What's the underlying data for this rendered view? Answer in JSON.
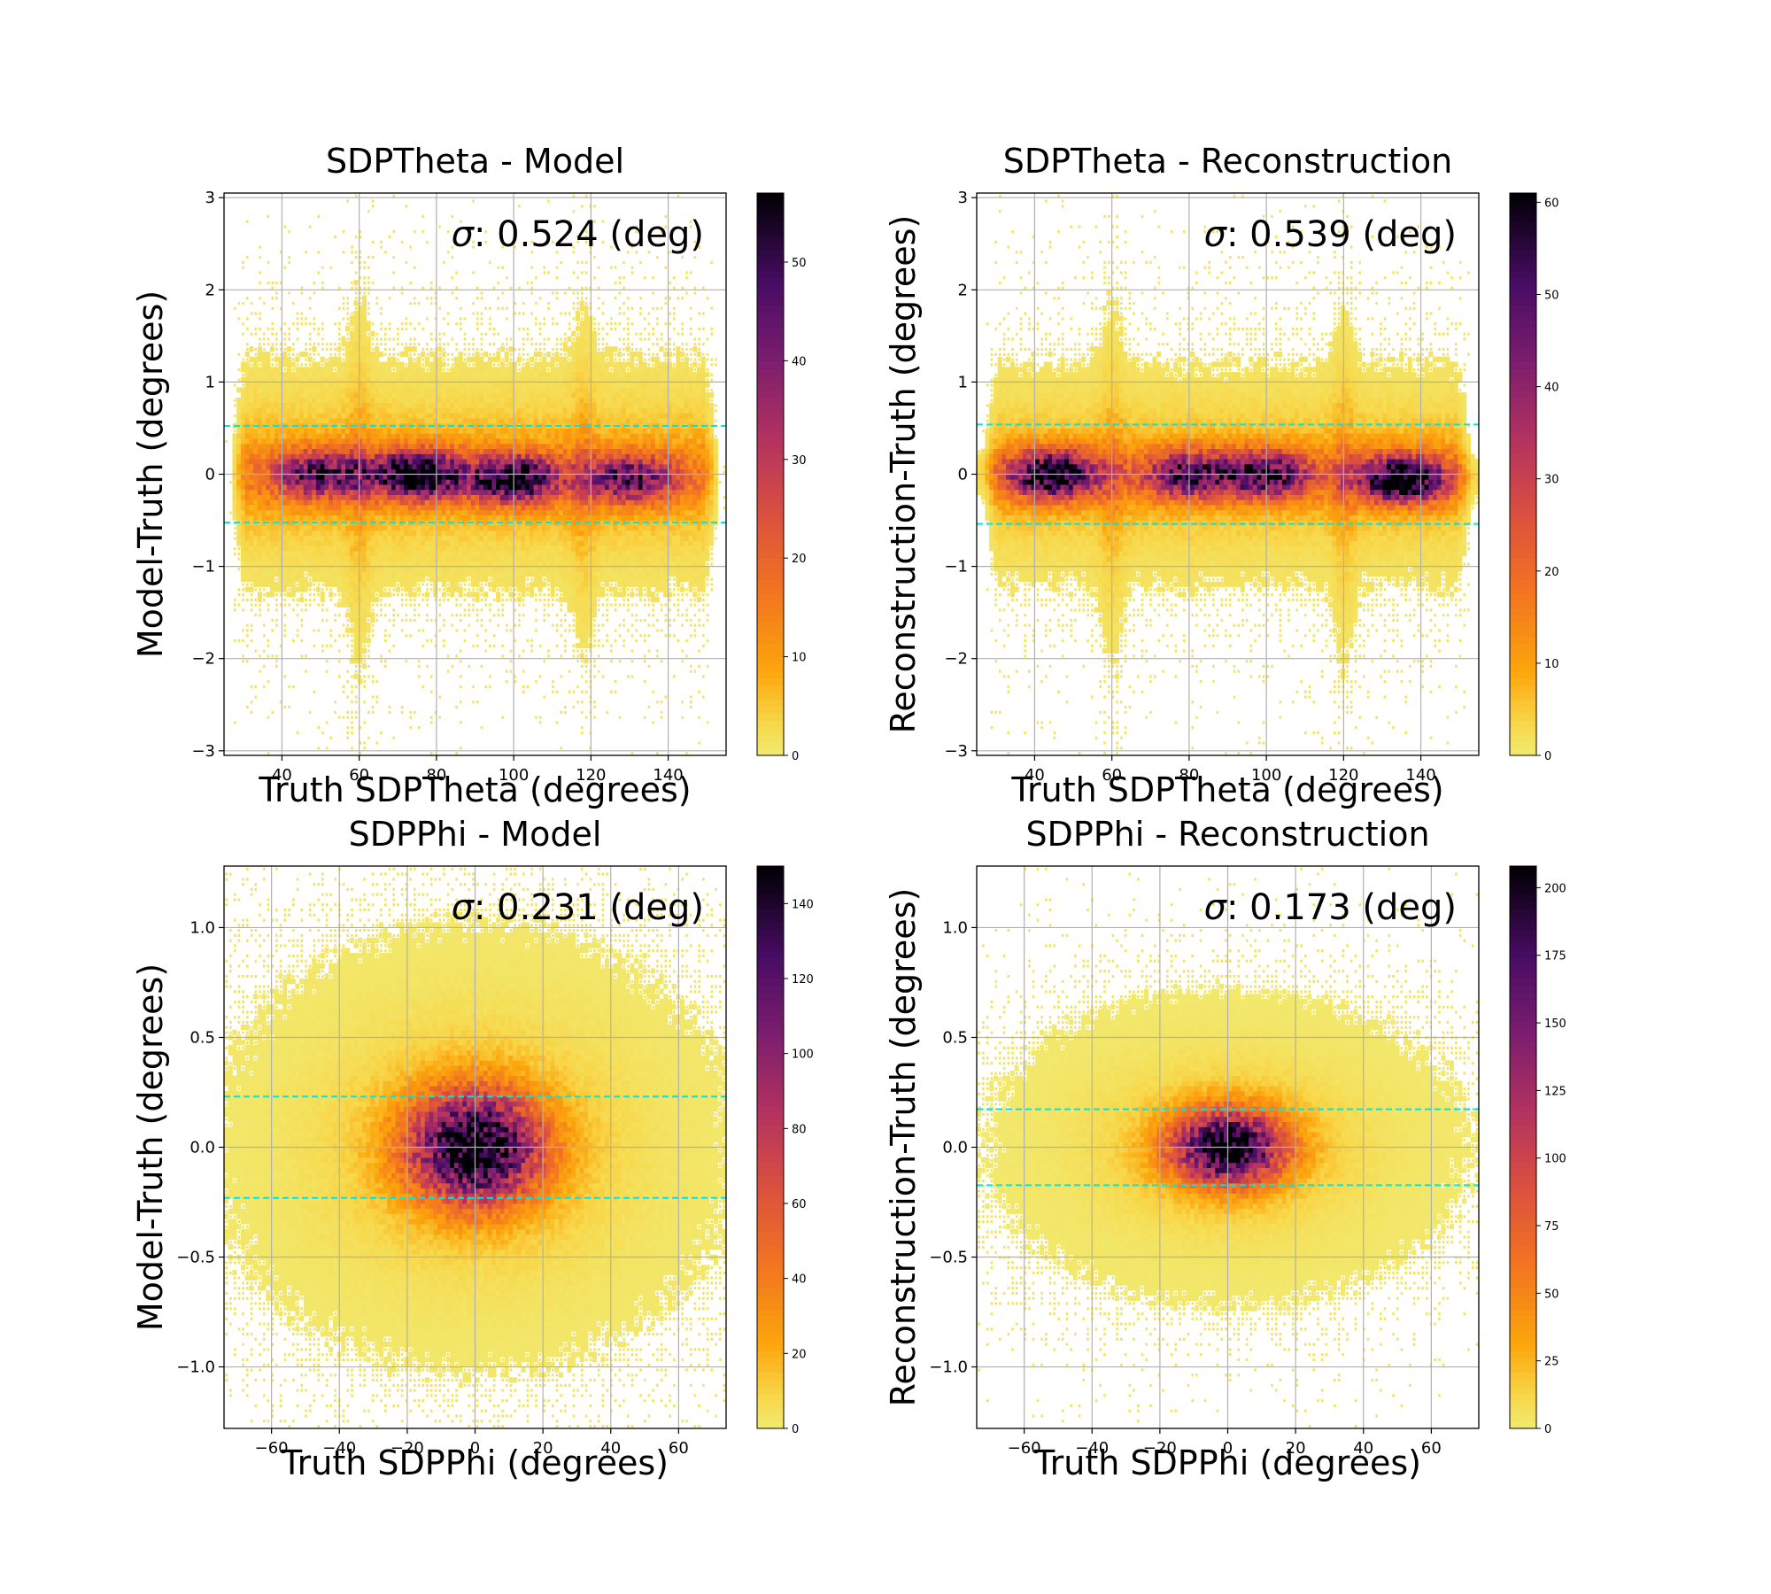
{
  "chart_data": [
    {
      "type": "heatmap",
      "title": "SDPTheta - Model",
      "xlabel": "Truth SDPTheta (degrees)",
      "ylabel": "Model-Truth (degrees)",
      "xlim": [
        25,
        155
      ],
      "ylim": [
        -3.05,
        3.05
      ],
      "xticks": [
        40,
        60,
        80,
        100,
        120,
        140
      ],
      "xtick_labels": [
        "40",
        "60",
        "80",
        "100",
        "120",
        "140"
      ],
      "yticks": [
        -3,
        -2,
        -1,
        0,
        1,
        2,
        3
      ],
      "ytick_labels": [
        "−3",
        "−2",
        "−1",
        "0",
        "1",
        "2",
        "3"
      ],
      "grid": true,
      "sigma_label": "σ: 0.524 (deg)",
      "sigma": 0.524,
      "sigma_lines": [
        0.524,
        -0.524
      ],
      "sigma_line_color": "#00e5e5",
      "colorbar": {
        "min": 0,
        "max": 57,
        "ticks": [
          0,
          10,
          20,
          30,
          40,
          50
        ],
        "tick_labels": [
          "0",
          "10",
          "20",
          "30",
          "40",
          "50"
        ]
      },
      "clusters": [
        {
          "x": 50,
          "y": 0,
          "peak": 36
        },
        {
          "x": 75,
          "y": 0,
          "peak": 54
        },
        {
          "x": 100,
          "y": -0.05,
          "peak": 48
        },
        {
          "x": 130,
          "y": -0.05,
          "peak": 36
        }
      ],
      "core_spread": {
        "x_range": [
          27,
          153
        ],
        "y_sigma": 0.32
      },
      "tails": [
        {
          "x": 60,
          "y_max": 2.1,
          "y_min": -2.3
        },
        {
          "x": 118,
          "y_max": 1.8,
          "y_min": -2.1
        }
      ]
    },
    {
      "type": "heatmap",
      "title": "SDPTheta - Reconstruction",
      "xlabel": "Truth SDPTheta (degrees)",
      "ylabel": "Reconstruction-Truth (degrees)",
      "xlim": [
        25,
        155
      ],
      "ylim": [
        -3.05,
        3.05
      ],
      "xticks": [
        40,
        60,
        80,
        100,
        120,
        140
      ],
      "xtick_labels": [
        "40",
        "60",
        "80",
        "100",
        "120",
        "140"
      ],
      "yticks": [
        -3,
        -2,
        -1,
        0,
        1,
        2,
        3
      ],
      "ytick_labels": [
        "−3",
        "−2",
        "−1",
        "0",
        "1",
        "2",
        "3"
      ],
      "grid": true,
      "sigma_label": "σ: 0.539 (deg)",
      "sigma": 0.539,
      "sigma_lines": [
        0.539,
        -0.539
      ],
      "sigma_line_color": "#00e5e5",
      "colorbar": {
        "min": 0,
        "max": 61,
        "ticks": [
          0,
          10,
          20,
          30,
          40,
          50,
          60
        ],
        "tick_labels": [
          "0",
          "10",
          "20",
          "30",
          "40",
          "50",
          "60"
        ]
      },
      "clusters": [
        {
          "x": 45,
          "y": 0,
          "peak": 55
        },
        {
          "x": 80,
          "y": 0,
          "peak": 40
        },
        {
          "x": 100,
          "y": 0,
          "peak": 42
        },
        {
          "x": 135,
          "y": -0.05,
          "peak": 58
        }
      ],
      "core_spread": {
        "x_range": [
          27,
          153
        ],
        "y_sigma": 0.3
      },
      "tails": [
        {
          "x": 60,
          "y_max": 2.0,
          "y_min": -2.4
        },
        {
          "x": 120,
          "y_max": 1.9,
          "y_min": -2.3
        }
      ]
    },
    {
      "type": "heatmap",
      "title": "SDPPhi - Model",
      "xlabel": "Truth SDPPhi (degrees)",
      "ylabel": "Model-Truth (degrees)",
      "xlim": [
        -74,
        74
      ],
      "ylim": [
        -1.28,
        1.28
      ],
      "xticks": [
        -60,
        -40,
        -20,
        0,
        20,
        40,
        60
      ],
      "xtick_labels": [
        "−60",
        "−40",
        "−20",
        "0",
        "20",
        "40",
        "60"
      ],
      "yticks": [
        -1.0,
        -0.5,
        0.0,
        0.5,
        1.0
      ],
      "ytick_labels": [
        "−1.0",
        "−0.5",
        "0.0",
        "0.5",
        "1.0"
      ],
      "grid": true,
      "sigma_label": "σ: 0.231 (deg)",
      "sigma": 0.231,
      "sigma_lines": [
        0.231,
        -0.231
      ],
      "sigma_line_color": "#00e5e5",
      "colorbar": {
        "min": 0,
        "max": 150,
        "ticks": [
          0,
          20,
          40,
          60,
          80,
          100,
          120,
          140
        ],
        "tick_labels": [
          "0",
          "20",
          "40",
          "60",
          "80",
          "100",
          "120",
          "140"
        ]
      },
      "clusters": [
        {
          "x": 0,
          "y": 0,
          "peak": 145
        }
      ],
      "core_spread": {
        "x_sigma": 13,
        "y_sigma": 0.17
      }
    },
    {
      "type": "heatmap",
      "title": "SDPPhi - Reconstruction",
      "xlabel": "Truth SDPPhi (degrees)",
      "ylabel": "Reconstruction-Truth (degrees)",
      "xlim": [
        -74,
        74
      ],
      "ylim": [
        -1.28,
        1.28
      ],
      "xticks": [
        -60,
        -40,
        -20,
        0,
        20,
        40,
        60
      ],
      "xtick_labels": [
        "−60",
        "−40",
        "−20",
        "0",
        "20",
        "40",
        "60"
      ],
      "yticks": [
        -1.0,
        -0.5,
        0.0,
        0.5,
        1.0
      ],
      "ytick_labels": [
        "−1.0",
        "−0.5",
        "0.0",
        "0.5",
        "1.0"
      ],
      "grid": true,
      "sigma_label": "σ: 0.173 (deg)",
      "sigma": 0.173,
      "sigma_lines": [
        0.173,
        -0.173
      ],
      "sigma_line_color": "#00e5e5",
      "colorbar": {
        "min": 0,
        "max": 208,
        "ticks": [
          0,
          25,
          50,
          75,
          100,
          125,
          150,
          175,
          200
        ],
        "tick_labels": [
          "0",
          "25",
          "50",
          "75",
          "100",
          "125",
          "150",
          "175",
          "200"
        ]
      },
      "clusters": [
        {
          "x": 0,
          "y": 0,
          "peak": 200
        }
      ],
      "core_spread": {
        "x_sigma": 11,
        "y_sigma": 0.11
      }
    }
  ]
}
